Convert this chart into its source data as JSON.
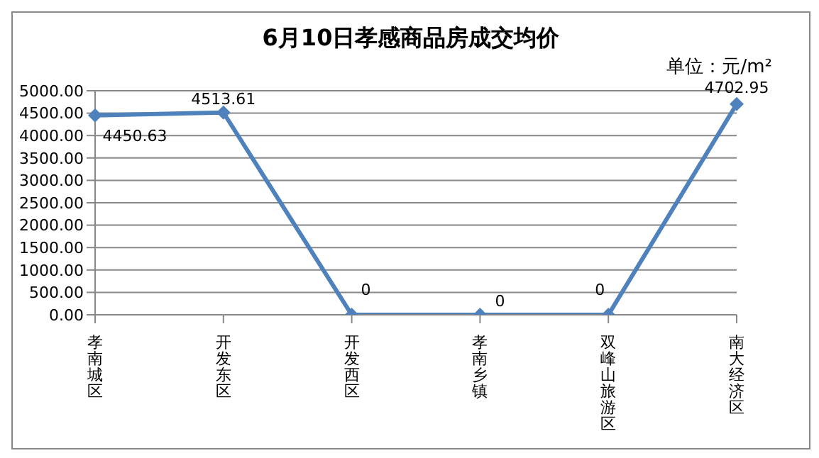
{
  "chart_data": {
    "type": "line",
    "title": "6月10日孝感商品房成交均价",
    "annotations": [
      "单位：元/m²"
    ],
    "categories": [
      "孝南城区",
      "开发东区",
      "开发西区",
      "孝南乡镇",
      "双峰山旅游区",
      "南大经济区"
    ],
    "series": [
      {
        "color": "#4f81bd",
        "values": [
          4450.63,
          4513.61,
          0,
          0,
          0,
          4702.95
        ]
      }
    ],
    "ylim": [
      0,
      5000
    ],
    "yticks": [
      {
        "value": 0,
        "label": "0.00"
      },
      {
        "value": 500,
        "label": "500.00"
      },
      {
        "value": 1000,
        "label": "1000.00"
      },
      {
        "value": 1500,
        "label": "1500.00"
      },
      {
        "value": 2000,
        "label": "2000.00"
      },
      {
        "value": 2500,
        "label": "2500.00"
      },
      {
        "value": 3000,
        "label": "3000.00"
      },
      {
        "value": 3500,
        "label": "3500.00"
      },
      {
        "value": 4000,
        "label": "4000.00"
      },
      {
        "value": 4500,
        "label": "4500.00"
      },
      {
        "value": 5000,
        "label": "5000.00"
      }
    ],
    "grid": "y",
    "marker": "diamond",
    "line_style": "solid",
    "data_labels": true
  }
}
